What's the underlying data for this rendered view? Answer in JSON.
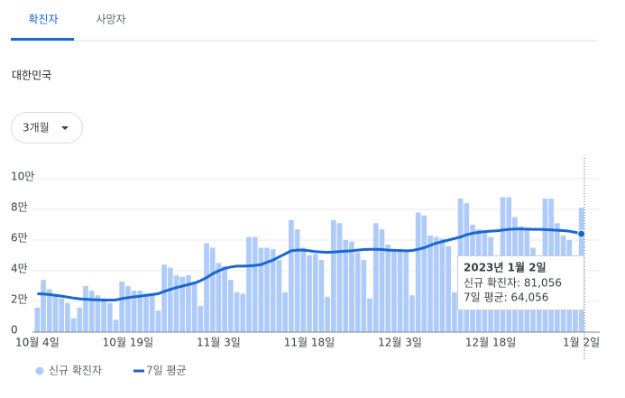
{
  "tabs": [
    "확진자",
    "사망자"
  ],
  "region": "대한민국",
  "range_selector": "3개월",
  "chart_data": {
    "type": "bar-line",
    "categories": [
      "10월 4일",
      null,
      null,
      null,
      null,
      null,
      null,
      null,
      null,
      null,
      null,
      null,
      null,
      null,
      null,
      "10월 19일",
      null,
      null,
      null,
      null,
      null,
      null,
      null,
      null,
      null,
      null,
      null,
      null,
      null,
      null,
      "11월 3일",
      null,
      null,
      null,
      null,
      null,
      null,
      null,
      null,
      null,
      null,
      null,
      null,
      null,
      null,
      "11월 18일",
      null,
      null,
      null,
      null,
      null,
      null,
      null,
      null,
      null,
      null,
      null,
      null,
      null,
      null,
      "12월 3일",
      null,
      null,
      null,
      null,
      null,
      null,
      null,
      null,
      null,
      null,
      null,
      null,
      null,
      null,
      "12월 18일",
      null,
      null,
      null,
      null,
      null,
      null,
      null,
      null,
      null,
      null,
      null,
      null,
      null,
      null,
      "1월 2일"
    ],
    "series": [
      {
        "name": "신규 확진자",
        "color": "#aecbfa",
        "kind": "bar",
        "values": [
          16000,
          34000,
          28000,
          25000,
          22000,
          19000,
          9000,
          16000,
          30000,
          27000,
          24000,
          22000,
          19000,
          8000,
          33000,
          30000,
          27000,
          27000,
          25000,
          24000,
          14000,
          44000,
          42000,
          37000,
          36000,
          37000,
          33000,
          17000,
          58000,
          55000,
          45000,
          43000,
          34000,
          26000,
          25000,
          62000,
          62000,
          55000,
          55000,
          54000,
          47000,
          26000,
          73000,
          67000,
          55000,
          50000,
          51000,
          47000,
          23000,
          73000,
          71000,
          60000,
          59000,
          52000,
          47000,
          22000,
          71000,
          67000,
          57000,
          54000,
          54000,
          53000,
          24000,
          78000,
          76000,
          63000,
          62000,
          61000,
          56000,
          26000,
          87000,
          84000,
          70000,
          67000,
          65000,
          62000,
          26000,
          88000,
          88000,
          75000,
          69000,
          68000,
          55000,
          26000,
          87000,
          87000,
          71000,
          63000,
          60000,
          48000,
          81056
        ]
      },
      {
        "name": "7일 평균",
        "color": "#1967d2",
        "kind": "line",
        "values": [
          25000,
          24800,
          24500,
          24000,
          23500,
          22800,
          22200,
          21700,
          21400,
          21200,
          21000,
          20900,
          20900,
          21000,
          21800,
          22500,
          23000,
          23400,
          24000,
          24500,
          25000,
          26500,
          27800,
          29000,
          30000,
          31000,
          32000,
          33500,
          35500,
          38000,
          40000,
          41500,
          42500,
          43000,
          43000,
          43200,
          43500,
          44000,
          45500,
          47000,
          49000,
          51000,
          53000,
          53500,
          53500,
          53000,
          52500,
          52200,
          52000,
          52200,
          52500,
          52800,
          53000,
          53500,
          53800,
          54000,
          54000,
          53800,
          53500,
          53300,
          53200,
          53000,
          53200,
          54000,
          55000,
          56500,
          58000,
          59000,
          60000,
          61000,
          62000,
          63500,
          64500,
          65000,
          65500,
          65800,
          66000,
          66500,
          67000,
          67200,
          67200,
          67100,
          67000,
          67000,
          66800,
          66600,
          66400,
          66200,
          65800,
          65000,
          64056
        ]
      }
    ],
    "ylim": [
      0,
      100000
    ],
    "yticks": [
      0,
      {
        "value": 20000,
        "label": "2만"
      },
      {
        "value": 40000,
        "label": "4만"
      },
      {
        "value": 60000,
        "label": "6만"
      },
      {
        "value": 80000,
        "label": "8만"
      },
      {
        "value": 100000,
        "label": "10만"
      }
    ],
    "grid": true,
    "tooltip": {
      "date": "2023년 1월 2일",
      "lines": [
        "신규 확진자: 81,056",
        "7일 평균: 64,056"
      ]
    }
  }
}
